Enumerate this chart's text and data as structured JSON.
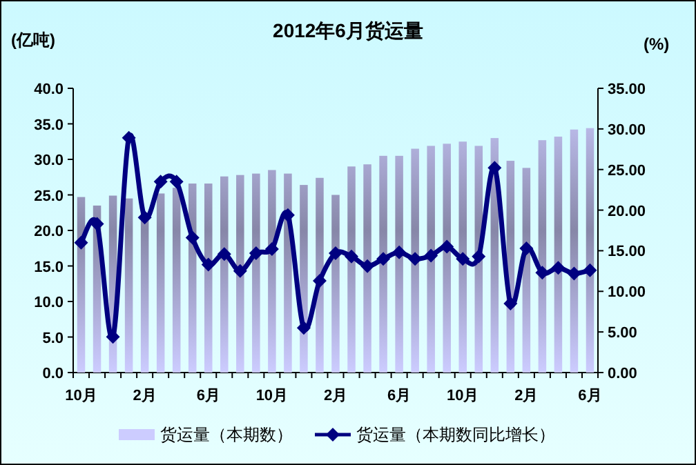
{
  "chart_data": {
    "type": "bar",
    "title": "2012年6月货运量",
    "ylabel": "(亿吨)",
    "y2label": "(%)",
    "categories": [
      "10月",
      null,
      null,
      null,
      "2月",
      null,
      null,
      null,
      "6月",
      null,
      null,
      null,
      "10月",
      null,
      null,
      null,
      "2月",
      null,
      null,
      null,
      "6月",
      null,
      null,
      null,
      "10月",
      null,
      null,
      null,
      "2月",
      null,
      null,
      null,
      "6月"
    ],
    "series": [
      {
        "name": "货运量（本期数）",
        "color": "#ccccff",
        "values": [
          24.7,
          23.5,
          24.9,
          24.5,
          22.5,
          25.2,
          26.0,
          26.6,
          26.6,
          27.6,
          27.8,
          28.0,
          28.5,
          28.0,
          26.4,
          27.4,
          25.0,
          29.0,
          29.3,
          30.5,
          30.5,
          31.5,
          31.9,
          32.2,
          32.5,
          31.9,
          33.0,
          29.8,
          28.8,
          32.7,
          33.2,
          34.2,
          34.4
        ]
      },
      {
        "name": "货运量（本期数同比增长）",
        "type": "line",
        "axis": "y2",
        "color": "#000080",
        "marker": "diamond",
        "values": [
          16.0,
          18.3,
          4.4,
          28.9,
          19.1,
          23.5,
          23.5,
          16.6,
          13.3,
          14.6,
          12.5,
          14.7,
          15.2,
          19.4,
          5.5,
          11.3,
          14.7,
          14.3,
          13.1,
          14.0,
          14.8,
          14.0,
          14.4,
          15.5,
          14.0,
          14.3,
          25.2,
          8.5,
          15.3,
          12.3,
          12.9,
          12.2,
          12.6
        ]
      }
    ],
    "ylim": [
      0,
      40
    ],
    "yticks": [
      {
        "value": 0,
        "label": "0.0"
      },
      {
        "value": 5,
        "label": "5.0"
      },
      {
        "value": 10,
        "label": "10.0"
      },
      {
        "value": 15,
        "label": "15.0"
      },
      {
        "value": 20,
        "label": "20.0"
      },
      {
        "value": 25,
        "label": "25.0"
      },
      {
        "value": 30,
        "label": "30.0"
      },
      {
        "value": 35,
        "label": "35.0"
      },
      {
        "value": 40,
        "label": "40.0"
      }
    ],
    "y2lim": [
      0,
      35
    ],
    "y2ticks": [
      {
        "value": 0,
        "label": "0.00"
      },
      {
        "value": 5,
        "label": "5.00"
      },
      {
        "value": 10,
        "label": "10.00"
      },
      {
        "value": 15,
        "label": "15.00"
      },
      {
        "value": 20,
        "label": "20.00"
      },
      {
        "value": 25,
        "label": "25.00"
      },
      {
        "value": 30,
        "label": "30.00"
      },
      {
        "value": 35,
        "label": "35.00"
      }
    ],
    "grid": false,
    "legend": "bottom"
  }
}
